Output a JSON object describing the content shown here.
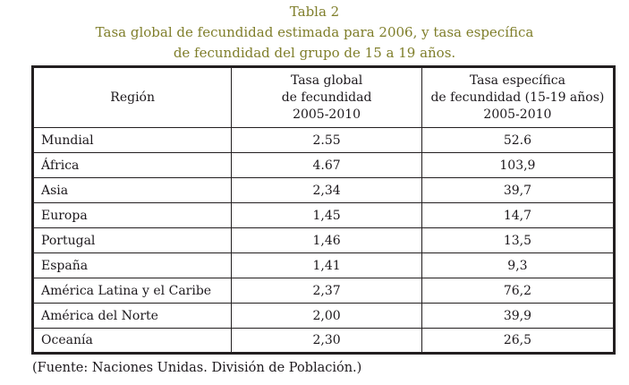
{
  "caption": {
    "line1": "Tabla 2",
    "line2": "Tasa global de fecundidad estimada para 2006, y tasa específica",
    "line3": "de fecundidad del grupo de 15 a 19 años."
  },
  "table": {
    "headers": {
      "region": "Región",
      "global": [
        "Tasa global",
        "de fecundidad",
        "2005-2010"
      ],
      "specific": [
        "Tasa específica",
        "de fecundidad (15-19 años)",
        "2005-2010"
      ]
    },
    "rows": [
      {
        "region": "Mundial",
        "global": "2.55",
        "specific": "52.6"
      },
      {
        "region": "África",
        "global": "4.67",
        "specific": "103,9"
      },
      {
        "region": "Asia",
        "global": "2,34",
        "specific": "39,7"
      },
      {
        "region": "Europa",
        "global": "1,45",
        "specific": "14,7"
      },
      {
        "region": "Portugal",
        "global": "1,46",
        "specific": "13,5"
      },
      {
        "region": "España",
        "global": "1,41",
        "specific": "9,3"
      },
      {
        "region": "América Latina y el Caribe",
        "global": "2,37",
        "specific": "76,2"
      },
      {
        "region": "América del Norte",
        "global": "2,00",
        "specific": "39,9"
      },
      {
        "region": "Oceanía",
        "global": "2,30",
        "specific": "26,5"
      }
    ]
  },
  "footer": "(Fuente: Naciones Unidas. División de Población.)",
  "colors": {
    "accent": "#7f7e2a",
    "border": "#231f20",
    "text": "#1c181c",
    "bg": "#ffffff"
  },
  "chart_data": {
    "type": "table",
    "title": "Tasa global de fecundidad estimada para 2006, y tasa específica de fecundidad del grupo de 15 a 19 años.",
    "columns": [
      "Región",
      "Tasa global de fecundidad 2005-2010",
      "Tasa específica de fecundidad (15-19 años) 2005-2010"
    ],
    "categories": [
      "Mundial",
      "África",
      "Asia",
      "Europa",
      "Portugal",
      "España",
      "América Latina y el Caribe",
      "América del Norte",
      "Oceanía"
    ],
    "series": [
      {
        "name": "Tasa global de fecundidad 2005-2010",
        "values": [
          2.55,
          4.67,
          2.34,
          1.45,
          1.46,
          1.41,
          2.37,
          2.0,
          2.3
        ]
      },
      {
        "name": "Tasa específica de fecundidad (15-19 años) 2005-2010",
        "values": [
          52.6,
          103.9,
          39.7,
          14.7,
          13.5,
          9.3,
          76.2,
          39.9,
          26.5
        ]
      }
    ],
    "source": "(Fuente: Naciones Unidas. División de Población.)"
  }
}
